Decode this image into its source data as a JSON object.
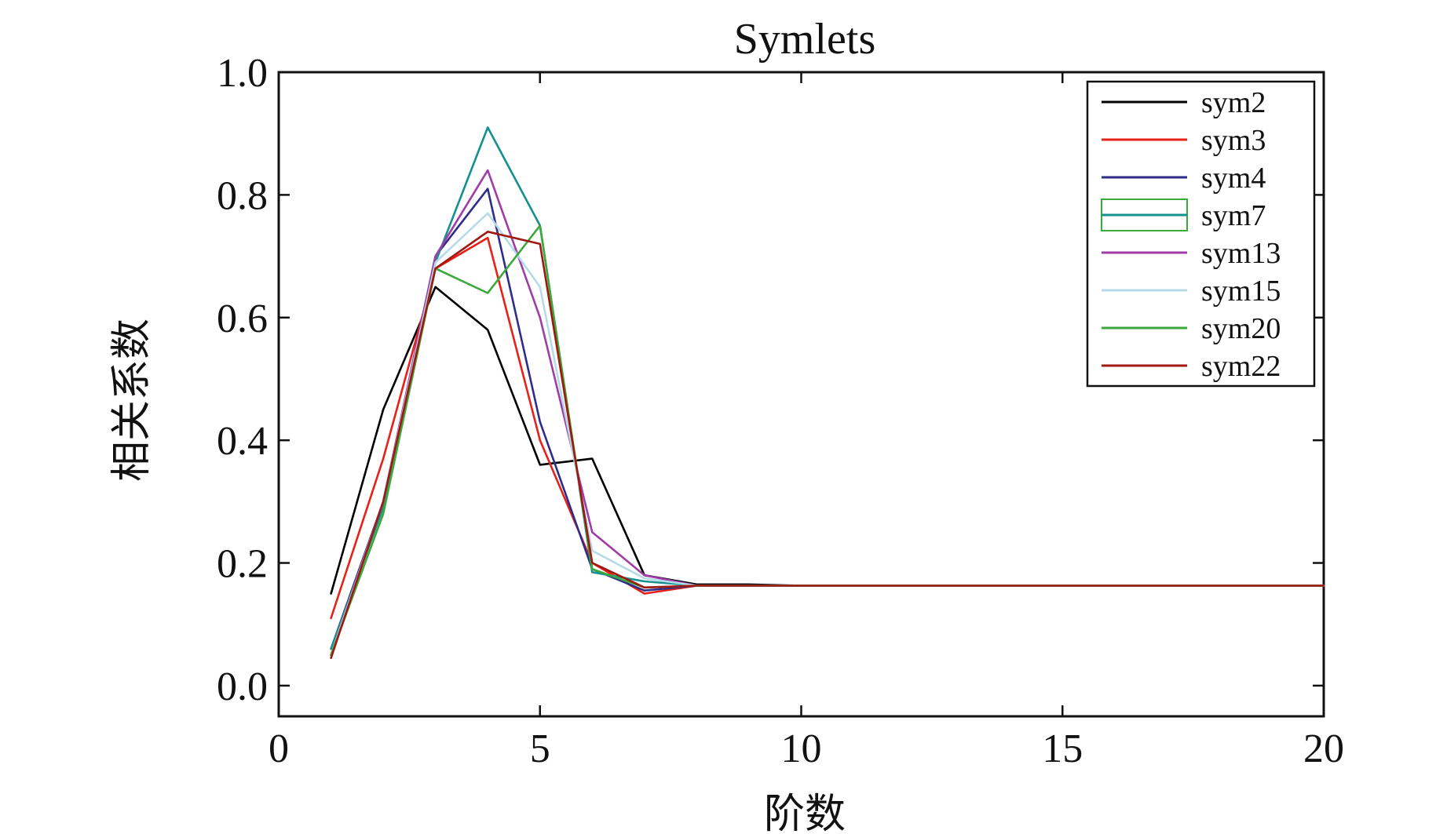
{
  "chart_data": {
    "type": "line",
    "title": "Symlets",
    "xlabel": "阶数",
    "ylabel": "相关系数",
    "xlim": [
      0,
      20
    ],
    "ylim": [
      -0.05,
      1.0
    ],
    "x_ticks": [
      "0",
      "5",
      "10",
      "15",
      "20"
    ],
    "y_ticks": [
      "0.0",
      "0.2",
      "0.4",
      "0.6",
      "0.8",
      "1.0"
    ],
    "grid": false,
    "legend_position": "top-right",
    "x": [
      1,
      2,
      3,
      4,
      5,
      6,
      7,
      8,
      9,
      10,
      11,
      12,
      13,
      14,
      15,
      16,
      17,
      18,
      19,
      20
    ],
    "series": [
      {
        "name": "sym2",
        "color": "#000000",
        "values": [
          0.15,
          0.45,
          0.65,
          0.58,
          0.36,
          0.37,
          0.18,
          0.165,
          0.165,
          0.163,
          0.163,
          0.163,
          0.163,
          0.163,
          0.163,
          0.163,
          0.163,
          0.163,
          0.163,
          0.163
        ]
      },
      {
        "name": "sym3",
        "color": "#e8201a",
        "values": [
          0.11,
          0.37,
          0.68,
          0.73,
          0.4,
          0.2,
          0.15,
          0.163,
          0.163,
          0.163,
          0.163,
          0.163,
          0.163,
          0.163,
          0.163,
          0.163,
          0.163,
          0.163,
          0.163,
          0.163
        ]
      },
      {
        "name": "sym4",
        "color": "#2e2e8a",
        "values": [
          0.06,
          0.3,
          0.7,
          0.81,
          0.43,
          0.19,
          0.155,
          0.163,
          0.163,
          0.163,
          0.163,
          0.163,
          0.163,
          0.163,
          0.163,
          0.163,
          0.163,
          0.163,
          0.163,
          0.163
        ]
      },
      {
        "name": "sym7",
        "color": "#159090",
        "values": [
          0.06,
          0.29,
          0.69,
          0.91,
          0.75,
          0.185,
          0.17,
          0.163,
          0.163,
          0.163,
          0.163,
          0.163,
          0.163,
          0.163,
          0.163,
          0.163,
          0.163,
          0.163,
          0.163,
          0.163
        ]
      },
      {
        "name": "sym13",
        "color": "#a03ca8",
        "values": [
          0.05,
          0.3,
          0.7,
          0.84,
          0.6,
          0.25,
          0.18,
          0.163,
          0.163,
          0.163,
          0.163,
          0.163,
          0.163,
          0.163,
          0.163,
          0.163,
          0.163,
          0.163,
          0.163,
          0.163
        ]
      },
      {
        "name": "sym15",
        "color": "#b5dbe8",
        "values": [
          0.05,
          0.3,
          0.69,
          0.77,
          0.65,
          0.22,
          0.175,
          0.163,
          0.163,
          0.163,
          0.163,
          0.163,
          0.163,
          0.163,
          0.163,
          0.163,
          0.163,
          0.163,
          0.163,
          0.163
        ]
      },
      {
        "name": "sym20",
        "color": "#3aa83a",
        "values": [
          0.05,
          0.28,
          0.68,
          0.64,
          0.75,
          0.19,
          0.16,
          0.163,
          0.163,
          0.163,
          0.163,
          0.163,
          0.163,
          0.163,
          0.163,
          0.163,
          0.163,
          0.163,
          0.163,
          0.163
        ]
      },
      {
        "name": "sym22",
        "color": "#a0180f",
        "values": [
          0.045,
          0.3,
          0.68,
          0.74,
          0.72,
          0.2,
          0.16,
          0.163,
          0.163,
          0.163,
          0.163,
          0.163,
          0.163,
          0.163,
          0.163,
          0.163,
          0.163,
          0.163,
          0.163,
          0.163
        ]
      }
    ]
  }
}
